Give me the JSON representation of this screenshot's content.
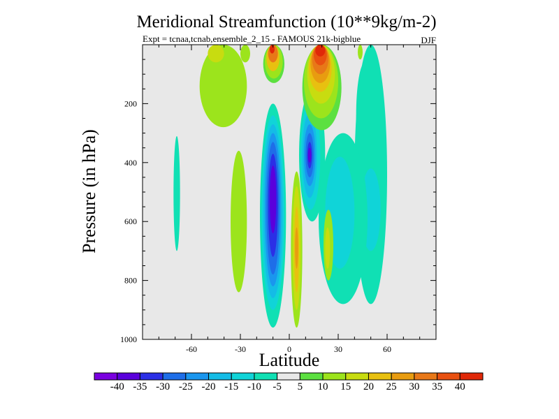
{
  "chart_data": {
    "type": "contour",
    "title": "Meridional Streamfunction (10**9kg/m-2)",
    "subtitle_left": "Expt = tcnaa,tcnab,ensemble_2_15 - FAMOUS 21k-bigblue",
    "subtitle_right": "DJF",
    "xlabel": "Latitude",
    "ylabel": "Pressure (in hPa)",
    "xlim": [
      -90,
      90
    ],
    "ylim": [
      1000,
      0
    ],
    "x_ticks": [
      -60,
      -30,
      0,
      30,
      60
    ],
    "x_tick_labels": [
      "-60",
      "-30",
      "0",
      "30",
      "60"
    ],
    "y_ticks": [
      200,
      400,
      600,
      800,
      1000
    ],
    "y_tick_labels": [
      "200",
      "400",
      "600",
      "800",
      "1000"
    ],
    "background_color": "#e8e8e8",
    "colorbar": {
      "colors": [
        "#7a00e0",
        "#5a00dc",
        "#2b2fe6",
        "#1e6ee8",
        "#1a96ee",
        "#14bce6",
        "#10d4d8",
        "#10e0b4",
        "#e8e8e8",
        "#5ce040",
        "#9ce41c",
        "#c8dc10",
        "#e8c010",
        "#e89c10",
        "#e87818",
        "#e85010",
        "#e02808"
      ],
      "labels": [
        "-40",
        "-35",
        "-30",
        "-25",
        "-20",
        "-15",
        "-10",
        "-5",
        "5",
        "10",
        "15",
        "20",
        "25",
        "30",
        "35",
        "40"
      ]
    },
    "regions": [
      {
        "name": "cell-nh-lower-weak",
        "lat": [
          41,
          52
        ],
        "p": [
          60,
          420
        ],
        "level": -5
      },
      {
        "name": "cell-nh-east-teal",
        "lat": [
          40,
          60
        ],
        "p": [
          0,
          880
        ],
        "level": -5
      },
      {
        "name": "cell-nh-east-cyan",
        "lat": [
          44,
          56
        ],
        "p": [
          420,
          700
        ],
        "level": -10
      },
      {
        "name": "cell-sh-west-green",
        "lat": [
          -95,
          -90
        ],
        "p": [
          0,
          0
        ],
        "level": 5
      },
      {
        "name": "cell-polar-teal",
        "lat": [
          -71,
          -67
        ],
        "p": [
          310,
          700
        ],
        "level": -5
      },
      {
        "name": "cell-sh-mid-green",
        "lat": [
          -36,
          -26
        ],
        "p": [
          360,
          840
        ],
        "level": 10
      },
      {
        "name": "cell-sh-upper-green",
        "lat": [
          -55,
          -26
        ],
        "p": [
          0,
          280
        ],
        "level": 10
      },
      {
        "name": "cell-sh-upper-lime",
        "lat": [
          -50,
          -40
        ],
        "p": [
          0,
          60
        ],
        "level": 15
      },
      {
        "name": "cell-sh-top-green",
        "lat": [
          -30,
          -24
        ],
        "p": [
          0,
          60
        ],
        "level": 10
      },
      {
        "name": "cell-sh-upper-red-5",
        "lat": [
          -16,
          -3
        ],
        "p": [
          0,
          130
        ],
        "level": 5
      },
      {
        "name": "cell-sh-upper-red-10",
        "lat": [
          -15,
          -4
        ],
        "p": [
          0,
          115
        ],
        "level": 10
      },
      {
        "name": "cell-sh-upper-red-20",
        "lat": [
          -14,
          -6
        ],
        "p": [
          0,
          90
        ],
        "level": 20
      },
      {
        "name": "cell-sh-upper-red-30",
        "lat": [
          -13,
          -7
        ],
        "p": [
          0,
          60
        ],
        "level": 30
      },
      {
        "name": "cell-sh-upper-red-40",
        "lat": [
          -12,
          -9
        ],
        "p": [
          0,
          30
        ],
        "level": 40
      },
      {
        "name": "cell-south-main-5",
        "lat": [
          -18,
          -2
        ],
        "p": [
          200,
          960
        ],
        "level": -5
      },
      {
        "name": "cell-south-main-10",
        "lat": [
          -17,
          -3
        ],
        "p": [
          240,
          900
        ],
        "level": -10
      },
      {
        "name": "cell-south-main-15",
        "lat": [
          -16,
          -4
        ],
        "p": [
          270,
          860
        ],
        "level": -15
      },
      {
        "name": "cell-south-main-20",
        "lat": [
          -15,
          -5
        ],
        "p": [
          300,
          820
        ],
        "level": -20
      },
      {
        "name": "cell-south-main-25",
        "lat": [
          -14,
          -6
        ],
        "p": [
          330,
          780
        ],
        "level": -25
      },
      {
        "name": "cell-south-main-30",
        "lat": [
          -13,
          -7
        ],
        "p": [
          370,
          720
        ],
        "level": -30
      },
      {
        "name": "cell-south-main-35",
        "lat": [
          -12,
          -8
        ],
        "p": [
          410,
          640
        ],
        "level": -35
      },
      {
        "name": "cell-equator-green",
        "lat": [
          1,
          8
        ],
        "p": [
          430,
          960
        ],
        "level": 10
      },
      {
        "name": "cell-equator-lime",
        "lat": [
          2,
          7
        ],
        "p": [
          480,
          900
        ],
        "level": 15
      },
      {
        "name": "cell-equator-yellow",
        "lat": [
          3,
          6
        ],
        "p": [
          550,
          840
        ],
        "level": 20
      },
      {
        "name": "cell-equator-orange",
        "lat": [
          3.5,
          5.5
        ],
        "p": [
          620,
          760
        ],
        "level": 25
      },
      {
        "name": "cell-nh-cyan-upper",
        "lat": [
          6,
          22
        ],
        "p": [
          150,
          600
        ],
        "level": -5
      },
      {
        "name": "cell-nh-cyan-10",
        "lat": [
          7,
          19
        ],
        "p": [
          190,
          560
        ],
        "level": -10
      },
      {
        "name": "cell-nh-cyan-15",
        "lat": [
          8,
          17
        ],
        "p": [
          230,
          520
        ],
        "level": -15
      },
      {
        "name": "cell-nh-cyan-20",
        "lat": [
          9,
          16
        ],
        "p": [
          270,
          480
        ],
        "level": -20
      },
      {
        "name": "cell-nh-cyan-25",
        "lat": [
          10,
          15
        ],
        "p": [
          300,
          450
        ],
        "level": -25
      },
      {
        "name": "cell-nh-cyan-30",
        "lat": [
          11,
          14
        ],
        "p": [
          330,
          420
        ],
        "level": -30
      },
      {
        "name": "cell-nh-cyan-35",
        "lat": [
          11.5,
          13.5
        ],
        "p": [
          350,
          400
        ],
        "level": -35
      },
      {
        "name": "cell-nh-upper-5",
        "lat": [
          8,
          32
        ],
        "p": [
          0,
          290
        ],
        "level": 5
      },
      {
        "name": "cell-nh-upper-10",
        "lat": [
          9,
          30
        ],
        "p": [
          0,
          250
        ],
        "level": 10
      },
      {
        "name": "cell-nh-upper-15",
        "lat": [
          11,
          28
        ],
        "p": [
          0,
          200
        ],
        "level": 15
      },
      {
        "name": "cell-nh-upper-20",
        "lat": [
          12,
          26
        ],
        "p": [
          0,
          160
        ],
        "level": 20
      },
      {
        "name": "cell-nh-upper-25",
        "lat": [
          13,
          25
        ],
        "p": [
          0,
          130
        ],
        "level": 25
      },
      {
        "name": "cell-nh-upper-30",
        "lat": [
          14,
          24
        ],
        "p": [
          0,
          100
        ],
        "level": 30
      },
      {
        "name": "cell-nh-upper-35",
        "lat": [
          15,
          23
        ],
        "p": [
          0,
          70
        ],
        "level": 35
      },
      {
        "name": "cell-nh-upper-40",
        "lat": [
          16,
          22
        ],
        "p": [
          0,
          40
        ],
        "level": 40
      },
      {
        "name": "cell-nh-mid-teal",
        "lat": [
          18,
          48
        ],
        "p": [
          300,
          880
        ],
        "level": -5
      },
      {
        "name": "cell-nh-mid-cyan",
        "lat": [
          22,
          40
        ],
        "p": [
          380,
          760
        ],
        "level": -10
      },
      {
        "name": "cell-nh-small-green",
        "lat": [
          21,
          27
        ],
        "p": [
          560,
          800
        ],
        "level": 10
      },
      {
        "name": "cell-nh-small-lime",
        "lat": [
          22,
          25
        ],
        "p": [
          620,
          760
        ],
        "level": 15
      },
      {
        "name": "cell-nh-top-lime",
        "lat": [
          42,
          45
        ],
        "p": [
          0,
          50
        ],
        "level": 10
      }
    ]
  }
}
